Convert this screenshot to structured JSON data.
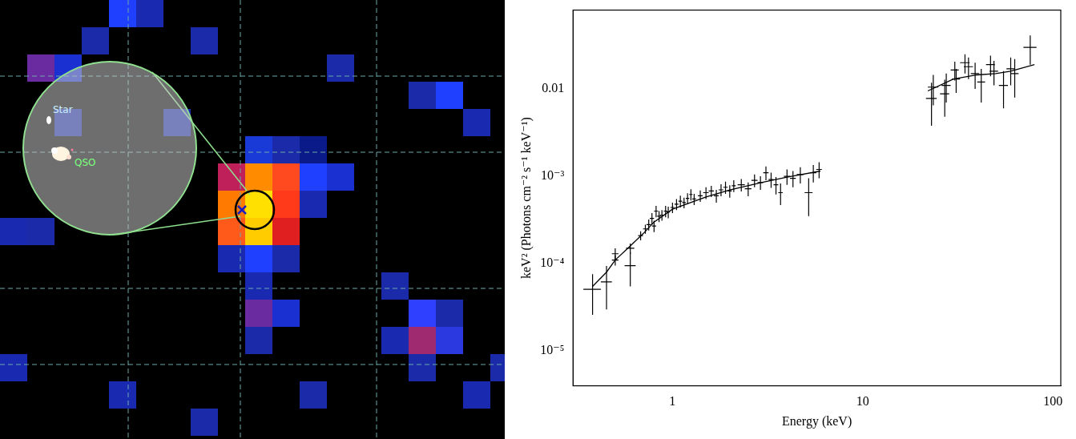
{
  "chart_data": {
    "type": "scatter",
    "x_label": "Energy (keV)",
    "y_label": "keV² (Photons cm⁻² s⁻¹ keV⁻¹)",
    "log": true,
    "grid": false,
    "xlim": [
      0.3,
      110
    ],
    "ylim": [
      4e-06,
      0.08
    ],
    "xticks": [
      1,
      10,
      100
    ],
    "yticks": [
      {
        "value": 1e-05,
        "label": "10⁻⁵"
      },
      {
        "value": 0.0001,
        "label": "10⁻⁴"
      },
      {
        "value": 0.001,
        "label": "10⁻³"
      },
      0.01
    ],
    "series": [
      {
        "type": "scatter",
        "marker": "none",
        "color": "#000000",
        "x": [
          0.38,
          0.45,
          0.5,
          0.5,
          0.6,
          0.6,
          0.68,
          0.72,
          0.75,
          0.78,
          0.8,
          0.82,
          0.85,
          0.88,
          0.92,
          0.95,
          1.0,
          1.05,
          1.1,
          1.15,
          1.2,
          1.25,
          1.3,
          1.4,
          1.5,
          1.6,
          1.7,
          1.8,
          1.9,
          2.0,
          2.1,
          2.3,
          2.5,
          2.7,
          2.9,
          3.1,
          3.3,
          3.5,
          3.7,
          4.0,
          4.3,
          4.7,
          5.2,
          5.5,
          5.9
        ],
        "values": [
          5.1e-05,
          6.2e-05,
          0.00013,
          0.00011,
          9.5e-05,
          0.00015,
          0.00021,
          0.00025,
          0.00028,
          0.00033,
          0.00027,
          0.0004,
          0.00035,
          0.00036,
          0.0004,
          0.00039,
          0.00044,
          0.00048,
          0.00052,
          0.0005,
          0.00056,
          0.00062,
          0.00055,
          0.0006,
          0.00065,
          0.00068,
          0.0006,
          0.0007,
          0.00075,
          0.00068,
          0.00078,
          0.0008,
          0.00072,
          0.0009,
          0.00085,
          0.0011,
          0.00092,
          0.0008,
          0.00065,
          0.001,
          0.00095,
          0.00105,
          0.00065,
          0.0011,
          0.0012
        ],
        "x_err": [
          0.04,
          0.03,
          0.02,
          0.02,
          0.04,
          0.03,
          0.02,
          0.02,
          0.02,
          0.02,
          0.02,
          0.02,
          0.02,
          0.02,
          0.02,
          0.02,
          0.025,
          0.025,
          0.025,
          0.025,
          0.025,
          0.025,
          0.03,
          0.04,
          0.05,
          0.05,
          0.05,
          0.05,
          0.05,
          0.05,
          0.05,
          0.1,
          0.1,
          0.1,
          0.1,
          0.1,
          0.1,
          0.1,
          0.1,
          0.15,
          0.15,
          0.2,
          0.25,
          0.2,
          0.2
        ],
        "y_err": [
          2.5e-05,
          3.2e-05,
          2e-05,
          1.5e-05,
          4e-05,
          2e-05,
          2.5e-05,
          3e-05,
          4e-05,
          5e-05,
          4e-05,
          6e-05,
          5e-05,
          5e-05,
          6e-05,
          6e-05,
          6e-05,
          7e-05,
          8e-05,
          7e-05,
          8e-05,
          9e-05,
          8e-05,
          9e-05,
          0.0001,
          0.0001,
          0.0001,
          0.00011,
          0.00012,
          0.00011,
          0.00012,
          0.00013,
          0.00013,
          0.00015,
          0.00015,
          0.0002,
          0.00018,
          0.00018,
          0.00018,
          0.0002,
          0.0002,
          0.00022,
          0.0003,
          0.00025,
          0.00025
        ]
      },
      {
        "type": "scatter",
        "marker": "none",
        "color": "#000000",
        "x": [
          23,
          23.5,
          27,
          27.5,
          30.5,
          31,
          34.5,
          36,
          39,
          42,
          47,
          49,
          55,
          60,
          63,
          76
        ],
        "values": [
          0.0078,
          0.0105,
          0.0088,
          0.011,
          0.0165,
          0.013,
          0.02,
          0.018,
          0.015,
          0.012,
          0.019,
          0.016,
          0.011,
          0.017,
          0.015,
          0.03
        ],
        "x_err": [
          1.5,
          1.5,
          1.5,
          1.5,
          1.5,
          1.5,
          2,
          2,
          2,
          2,
          2.5,
          2.5,
          3,
          3,
          3,
          6
        ],
        "y_err": [
          0.004,
          0.004,
          0.004,
          0.004,
          0.004,
          0.004,
          0.005,
          0.005,
          0.005,
          0.005,
          0.005,
          0.005,
          0.005,
          0.006,
          0.007,
          0.011
        ]
      },
      {
        "type": "line",
        "line_style": "solid",
        "color": "#000000",
        "x": [
          0.38,
          0.45,
          0.5,
          0.6,
          0.7,
          0.8,
          1,
          1.5,
          2,
          3,
          4,
          6
        ],
        "values": [
          5.5e-05,
          8e-05,
          0.00011,
          0.00016,
          0.00022,
          0.0003,
          0.00042,
          0.00058,
          0.0007,
          0.00086,
          0.00098,
          0.00115
        ]
      },
      {
        "type": "line",
        "line_style": "solid",
        "color": "#000000",
        "x": [
          22,
          30,
          40,
          50,
          60,
          80
        ],
        "values": [
          0.0095,
          0.013,
          0.0145,
          0.015,
          0.016,
          0.019
        ]
      }
    ]
  },
  "image": {
    "labels": [
      "Star",
      "QSO"
    ]
  }
}
